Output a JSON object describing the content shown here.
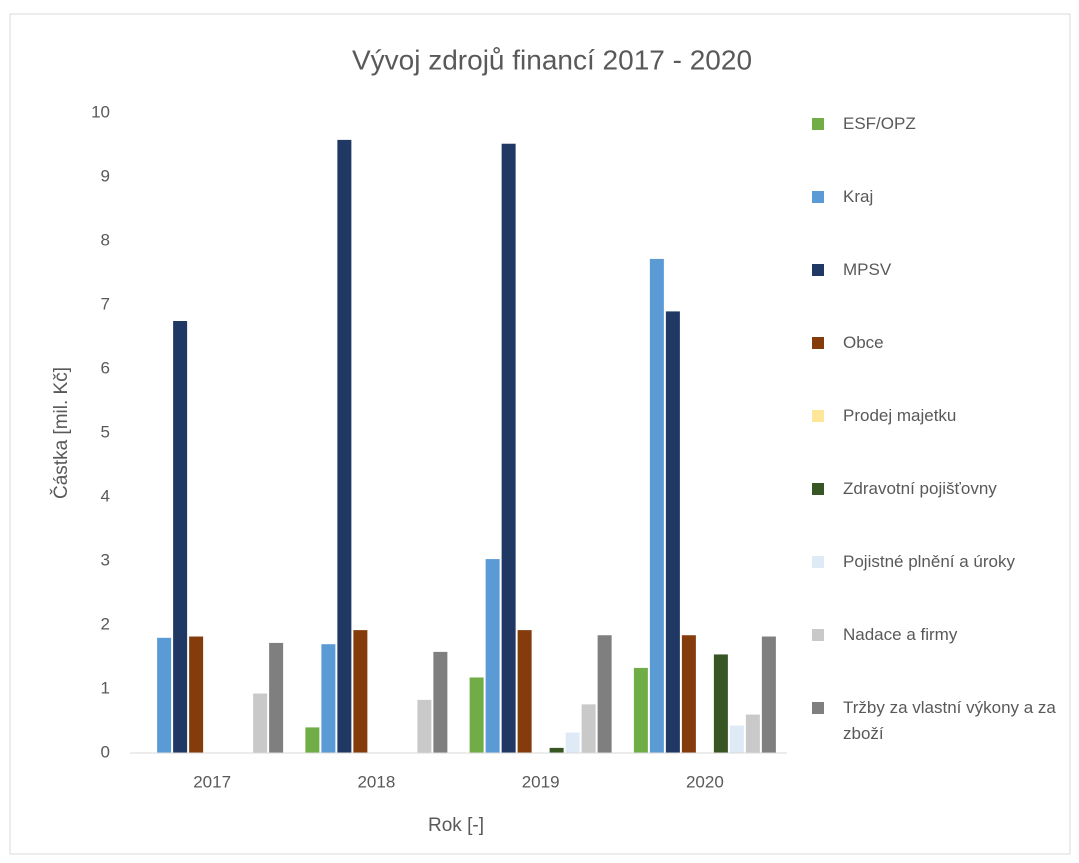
{
  "chart_data": {
    "type": "bar",
    "title": "Vývoj zdrojů financí 2017 - 2020",
    "x_label": "Rok [-]",
    "y_label": "Částka [mil. Kč]",
    "categories": [
      "2017",
      "2018",
      "2019",
      "2020"
    ],
    "ylim": [
      0,
      10
    ],
    "yticks": [
      0,
      1,
      2,
      3,
      4,
      5,
      6,
      7,
      8,
      9,
      10
    ],
    "grid": false,
    "legend": "right",
    "series": [
      {
        "name": "ESF/OPZ",
        "color": "#70ad47",
        "values": [
          0,
          0.4,
          1.18,
          1.33
        ]
      },
      {
        "name": "Kraj",
        "color": "#5b9bd5",
        "values": [
          1.8,
          1.7,
          3.03,
          7.72
        ]
      },
      {
        "name": "MPSV",
        "color": "#203864",
        "values": [
          6.75,
          9.58,
          9.52,
          6.9
        ]
      },
      {
        "name": "Obce",
        "color": "#843c0c",
        "values": [
          1.82,
          1.92,
          1.92,
          1.84
        ]
      },
      {
        "name": "Prodej majetku",
        "color": "#ffe699",
        "values": [
          0,
          0,
          0,
          0
        ]
      },
      {
        "name": "Zdravotní pojišťovny",
        "color": "#375623",
        "values": [
          0,
          0,
          0.08,
          1.54
        ]
      },
      {
        "name": "Pojistné plnění a úroky",
        "color": "#deebf7",
        "values": [
          0,
          0,
          0.32,
          0.43
        ]
      },
      {
        "name": "Nadace a firmy",
        "color": "#c9c9c9",
        "values": [
          0.93,
          0.83,
          0.76,
          0.6
        ]
      },
      {
        "name": "Tržby za vlastní výkony a za zboží",
        "color": "#7f7f7f",
        "values": [
          1.72,
          1.58,
          1.84,
          1.82
        ]
      }
    ]
  }
}
